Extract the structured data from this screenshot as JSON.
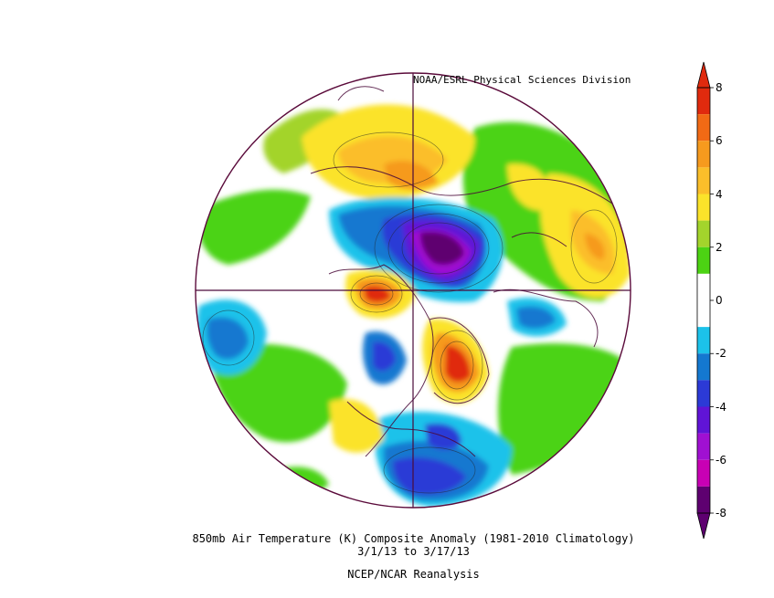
{
  "header": {
    "credit": "NOAA/ESRL Physical Sciences Division"
  },
  "footer": {
    "title": "850mb Air Temperature (K) Composite Anomaly (1981-2010 Climatology)",
    "date_range": "3/1/13  to 3/17/13",
    "source": "NCEP/NCAR Reanalysis"
  },
  "colorbar": {
    "ticks": [
      {
        "value": "8"
      },
      {
        "value": "6"
      },
      {
        "value": "4"
      },
      {
        "value": "2"
      },
      {
        "value": "0"
      },
      {
        "value": "-2"
      },
      {
        "value": "-4"
      },
      {
        "value": "-6"
      },
      {
        "value": "-8"
      }
    ],
    "bins": [
      {
        "min": 7,
        "max": 8,
        "color": "#e02a0e"
      },
      {
        "min": 6,
        "max": 7,
        "color": "#f26a15"
      },
      {
        "min": 5,
        "max": 6,
        "color": "#f69a1e"
      },
      {
        "min": 4,
        "max": 5,
        "color": "#fbbe2a"
      },
      {
        "min": 3,
        "max": 4,
        "color": "#fbe32a"
      },
      {
        "min": 2,
        "max": 3,
        "color": "#a3d42c"
      },
      {
        "min": 1,
        "max": 2,
        "color": "#4cd313"
      },
      {
        "min": -1,
        "max": 1,
        "color": "#ffffff"
      },
      {
        "min": -2,
        "max": -1,
        "color": "#1cc2ea"
      },
      {
        "min": -3,
        "max": -2,
        "color": "#1478d0"
      },
      {
        "min": -4,
        "max": -3,
        "color": "#2c3ad6"
      },
      {
        "min": -5,
        "max": -4,
        "color": "#6014d6"
      },
      {
        "min": -6,
        "max": -5,
        "color": "#a010d2"
      },
      {
        "min": -7,
        "max": -6,
        "color": "#c800b4"
      },
      {
        "min": -8,
        "max": -7,
        "color": "#5e0070"
      }
    ],
    "over_color": "#e02a0e",
    "under_color": "#5e0070"
  },
  "map": {
    "projection": "north-polar-stereographic",
    "outline_color": "#5a0a3a",
    "coastline_color": "#4a0a3a"
  }
}
